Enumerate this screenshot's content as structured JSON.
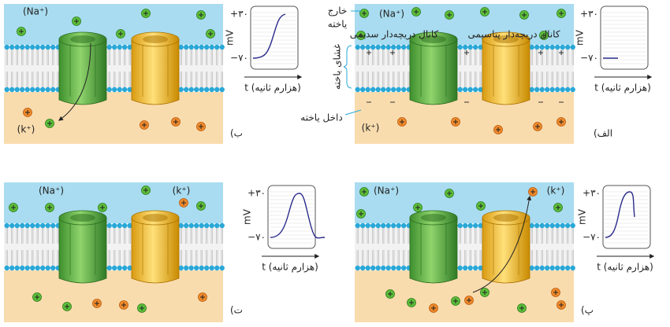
{
  "panels": [
    {
      "label": "الف)",
      "na": "(Na⁺)",
      "k": "(k⁺)",
      "graph": {
        "y_label": "mV",
        "top_tick": "+۳۰",
        "bottom_tick": "−۷۰",
        "x_label": "t (هزارم ثانیه)"
      }
    },
    {
      "label": "ب)",
      "na": "(Na⁺)",
      "k": "(k⁺)",
      "graph": {
        "y_label": "mV",
        "top_tick": "+۳۰",
        "bottom_tick": "−۷۰",
        "x_label": "t (هزارم ثانیه)"
      }
    },
    {
      "label": "پ)",
      "na": "(Na⁺)",
      "k": "(k⁺)",
      "graph": {
        "y_label": "mV",
        "top_tick": "+۳۰",
        "bottom_tick": "−۷۰",
        "x_label": "t (هزارم ثانیه)"
      }
    },
    {
      "label": "ت)",
      "na": "(Na⁺)",
      "k": "(k⁺)",
      "graph": {
        "y_label": "mV",
        "top_tick": "+۳۰",
        "bottom_tick": "−۷۰",
        "x_label": "t (هزارم ثانیه)"
      }
    }
  ],
  "annotations": {
    "outside": [
      "خارج",
      "یاخته"
    ],
    "sodium_channel": "کانال دریچه‌دار سدیمی",
    "potassium_channel": "کانال دریچه‌دار پتاسیمی",
    "membrane": "غشای یاخته",
    "inside": "داخل یاخته"
  }
}
